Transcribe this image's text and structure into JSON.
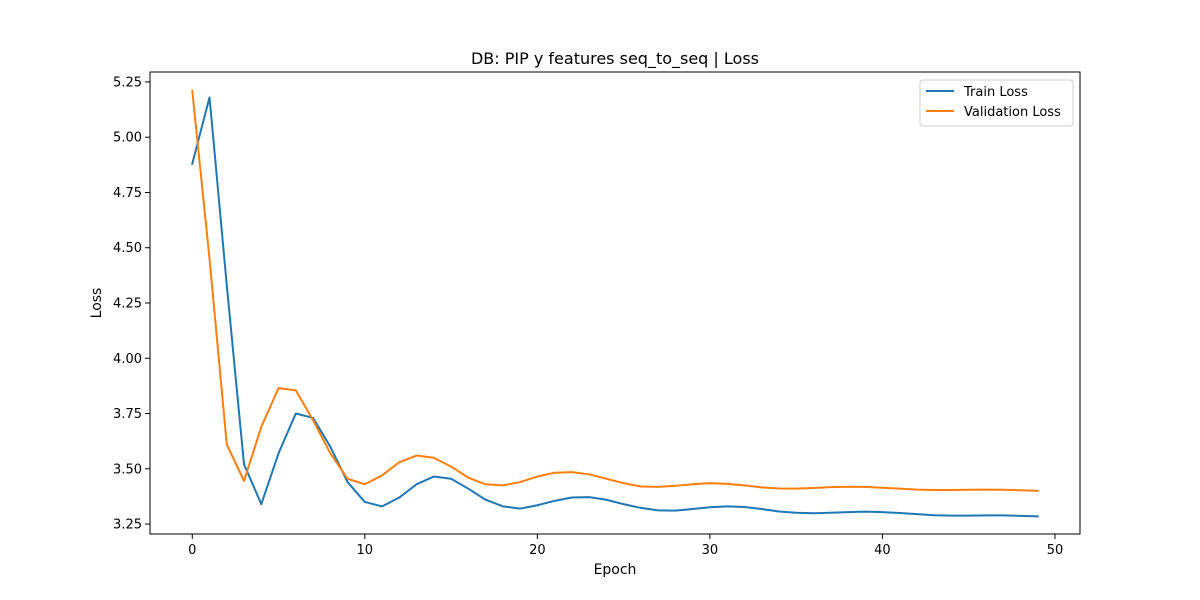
{
  "chart_data": {
    "type": "line",
    "title": "DB: PIP y features seq_to_seq | Loss",
    "xlabel": "Epoch",
    "ylabel": "Loss",
    "xlim": [
      -2.45,
      51.45
    ],
    "ylim": [
      3.205,
      5.295
    ],
    "xticks": [
      0,
      10,
      20,
      30,
      40,
      50
    ],
    "yticks": [
      3.25,
      3.5,
      3.75,
      4.0,
      4.25,
      4.5,
      4.75,
      5.0,
      5.25
    ],
    "ytick_labels": [
      "3.25",
      "3.50",
      "3.75",
      "4.00",
      "4.25",
      "4.50",
      "4.75",
      "5.00",
      "5.25"
    ],
    "grid": false,
    "legend_position": "top-right",
    "x": [
      0,
      1,
      2,
      3,
      4,
      5,
      6,
      7,
      8,
      9,
      10,
      11,
      12,
      13,
      14,
      15,
      16,
      17,
      18,
      19,
      20,
      21,
      22,
      23,
      24,
      25,
      26,
      27,
      28,
      29,
      30,
      31,
      32,
      33,
      34,
      35,
      36,
      37,
      38,
      39,
      40,
      41,
      42,
      43,
      44,
      45,
      46,
      47,
      48,
      49
    ],
    "series": [
      {
        "name": "Train Loss",
        "color": "#1f77b4",
        "values": [
          4.88,
          5.18,
          4.33,
          3.52,
          3.34,
          3.57,
          3.75,
          3.73,
          3.6,
          3.44,
          3.35,
          3.33,
          3.37,
          3.43,
          3.465,
          3.455,
          3.41,
          3.36,
          3.33,
          3.32,
          3.335,
          3.355,
          3.37,
          3.372,
          3.36,
          3.34,
          3.323,
          3.312,
          3.311,
          3.318,
          3.326,
          3.33,
          3.327,
          3.318,
          3.307,
          3.301,
          3.299,
          3.301,
          3.304,
          3.306,
          3.304,
          3.3,
          3.295,
          3.29,
          3.288,
          3.288,
          3.289,
          3.289,
          3.287,
          3.285
        ]
      },
      {
        "name": "Validation Loss",
        "color": "#ff7f0e",
        "values": [
          5.21,
          4.45,
          3.61,
          3.445,
          3.69,
          3.865,
          3.855,
          3.72,
          3.57,
          3.455,
          3.43,
          3.47,
          3.53,
          3.56,
          3.55,
          3.51,
          3.46,
          3.43,
          3.425,
          3.44,
          3.465,
          3.482,
          3.485,
          3.475,
          3.455,
          3.435,
          3.42,
          3.418,
          3.423,
          3.43,
          3.435,
          3.432,
          3.425,
          3.416,
          3.411,
          3.41,
          3.413,
          3.417,
          3.419,
          3.418,
          3.414,
          3.41,
          3.406,
          3.404,
          3.404,
          3.405,
          3.406,
          3.405,
          3.403,
          3.4
        ]
      }
    ]
  }
}
